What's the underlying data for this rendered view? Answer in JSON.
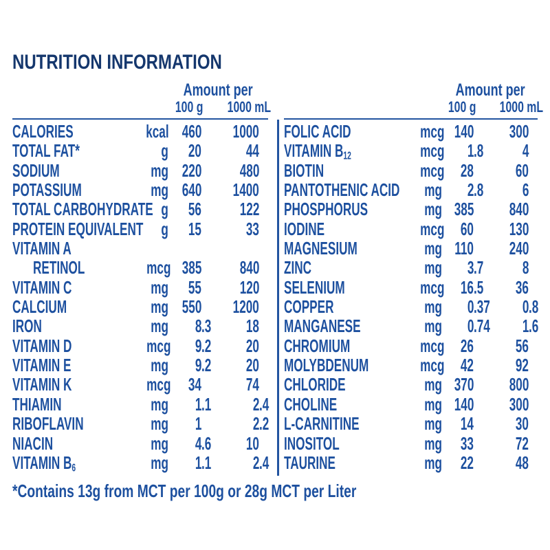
{
  "title": "NUTRITION INFORMATION",
  "colors": {
    "title_navy": "#15376d",
    "body_blue": "#1d509f",
    "rule_blue": "#2254a0",
    "background": "#ffffff"
  },
  "header": {
    "amount_label": "Amount per",
    "col_100g": "100 g",
    "col_1000ml": "1000 mL"
  },
  "tables": {
    "left": {
      "rows": [
        {
          "name": "CALORIES",
          "unit": "kcal",
          "per_100g": "460",
          "per_1000ml": "1000"
        },
        {
          "name": "TOTAL FAT*",
          "unit": "g",
          "per_100g": "20",
          "per_1000ml": "44"
        },
        {
          "name": "SODIUM",
          "unit": "mg",
          "per_100g": "220",
          "per_1000ml": "480"
        },
        {
          "name": "POTASSIUM",
          "unit": "mg",
          "per_100g": "640",
          "per_1000ml": "1400"
        },
        {
          "name": "TOTAL CARBOHYDRATE",
          "unit": "g",
          "per_100g": "56",
          "per_1000ml": "122"
        },
        {
          "name": "PROTEIN EQUIVALENT",
          "unit": "g",
          "per_100g": "15",
          "per_1000ml": "33"
        },
        {
          "name": "VITAMIN A",
          "unit": "",
          "per_100g": "",
          "per_1000ml": ""
        },
        {
          "name": "RETINOL",
          "indent": true,
          "unit": "mcg",
          "per_100g": "385",
          "per_1000ml": "840"
        },
        {
          "name": "VITAMIN C",
          "unit": "mg",
          "per_100g": "55",
          "per_1000ml": "120"
        },
        {
          "name": "CALCIUM",
          "unit": "mg",
          "per_100g": "550",
          "per_1000ml": "1200"
        },
        {
          "name": "IRON",
          "unit": "mg",
          "per_100g": "8.3",
          "per_1000ml": "18"
        },
        {
          "name": "VITAMIN D",
          "unit": "mcg",
          "per_100g": "9.2",
          "per_1000ml": "20"
        },
        {
          "name": "VITAMIN E",
          "unit": "mg",
          "per_100g": "9.2",
          "per_1000ml": "20"
        },
        {
          "name": "VITAMIN K",
          "unit": "mcg",
          "per_100g": "34",
          "per_1000ml": "74"
        },
        {
          "name": "THIAMIN",
          "unit": "mg",
          "per_100g": "1.1",
          "per_1000ml": "2.4"
        },
        {
          "name": "RIBOFLAVIN",
          "unit": "mg",
          "per_100g": "1",
          "per_1000ml": "2.2"
        },
        {
          "name": "NIACIN",
          "unit": "mg",
          "per_100g": "4.6",
          "per_1000ml": "10"
        },
        {
          "name": "VITAMIN B",
          "sub": "6",
          "unit": "mg",
          "per_100g": "1.1",
          "per_1000ml": "2.4"
        }
      ]
    },
    "right": {
      "rows": [
        {
          "name": "FOLIC ACID",
          "unit": "mcg",
          "per_100g": "140",
          "per_1000ml": "300"
        },
        {
          "name": "VITAMIN B",
          "sub": "12",
          "unit": "mcg",
          "per_100g": "1.8",
          "per_1000ml": "4"
        },
        {
          "name": "BIOTIN",
          "unit": "mcg",
          "per_100g": "28",
          "per_1000ml": "60"
        },
        {
          "name": "PANTOTHENIC ACID",
          "unit": "mg",
          "per_100g": "2.8",
          "per_1000ml": "6"
        },
        {
          "name": "PHOSPHORUS",
          "unit": "mg",
          "per_100g": "385",
          "per_1000ml": "840"
        },
        {
          "name": "IODINE",
          "unit": "mcg",
          "per_100g": "60",
          "per_1000ml": "130"
        },
        {
          "name": "MAGNESIUM",
          "unit": "mg",
          "per_100g": "110",
          "per_1000ml": "240"
        },
        {
          "name": "ZINC",
          "unit": "mg",
          "per_100g": "3.7",
          "per_1000ml": "8"
        },
        {
          "name": "SELENIUM",
          "unit": "mcg",
          "per_100g": "16.5",
          "per_1000ml": "36"
        },
        {
          "name": "COPPER",
          "unit": "mg",
          "per_100g": "0.37",
          "per_1000ml": "0.8"
        },
        {
          "name": "MANGANESE",
          "unit": "mg",
          "per_100g": "0.74",
          "per_1000ml": "1.6"
        },
        {
          "name": "CHROMIUM",
          "unit": "mcg",
          "per_100g": "26",
          "per_1000ml": "56"
        },
        {
          "name": "MOLYBDENUM",
          "unit": "mcg",
          "per_100g": "42",
          "per_1000ml": "92"
        },
        {
          "name": "CHLORIDE",
          "unit": "mg",
          "per_100g": "370",
          "per_1000ml": "800"
        },
        {
          "name": "CHOLINE",
          "unit": "mg",
          "per_100g": "140",
          "per_1000ml": "300"
        },
        {
          "name": "L-CARNITINE",
          "unit": "mg",
          "per_100g": "14",
          "per_1000ml": "30"
        },
        {
          "name": "INOSITOL",
          "unit": "mg",
          "per_100g": "33",
          "per_1000ml": "72"
        },
        {
          "name": "TAURINE",
          "unit": "mg",
          "per_100g": "22",
          "per_1000ml": "48"
        }
      ]
    }
  },
  "footnote": "*Contains 13g from MCT per 100g or 28g MCT per Liter"
}
